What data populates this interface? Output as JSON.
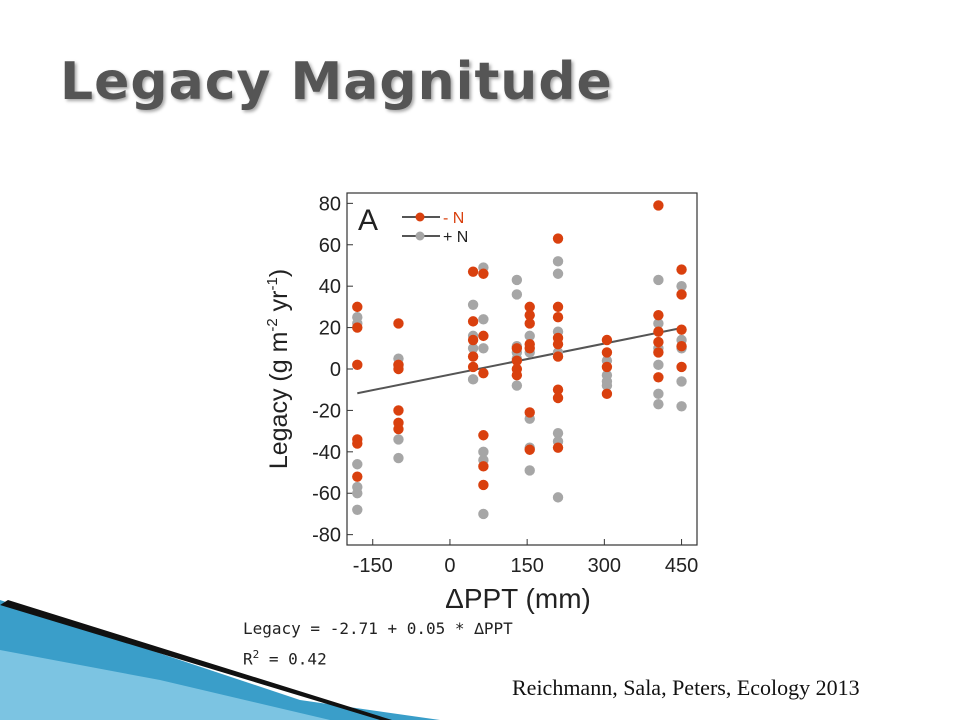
{
  "slide": {
    "title": "Legacy Magnitude",
    "equation_line1": "Legacy = -2.71 + 0.05 * ∆PPT",
    "equation_r_prefix": "R",
    "equation_r_sup": "2",
    "equation_r_value": " = 0.42",
    "citation": "Reichmann, Sala, Peters, Ecology 2013"
  },
  "chart_data": {
    "type": "scatter",
    "panel_label": "A",
    "xlabel": "ΔPPT (mm)",
    "ylabel_main": "Legacy (g m",
    "ylabel_sup1": "-2",
    "ylabel_mid": " yr",
    "ylabel_sup2": "-1",
    "ylabel_end": ")",
    "xlim": [
      -200,
      480
    ],
    "ylim": [
      -85,
      85
    ],
    "xticks": [
      -150,
      0,
      150,
      300,
      450
    ],
    "xtick_labels": [
      "-150",
      "0",
      "150",
      "300",
      "450"
    ],
    "yticks": [
      80,
      60,
      40,
      20,
      0,
      -20,
      -40,
      -60,
      -80
    ],
    "ytick_labels": [
      "80",
      "60",
      "40",
      "20",
      "0",
      "-20",
      "-40",
      "-60",
      "-80"
    ],
    "grid": false,
    "legend_position": "top-left",
    "series": [
      {
        "name": "- N",
        "color": "#d9400e",
        "points": [
          [
            -180,
            30
          ],
          [
            -180,
            20
          ],
          [
            -180,
            2
          ],
          [
            -180,
            -34
          ],
          [
            -180,
            -36
          ],
          [
            -180,
            -52
          ],
          [
            -100,
            22
          ],
          [
            -100,
            2
          ],
          [
            -100,
            0
          ],
          [
            -100,
            -20
          ],
          [
            -100,
            -26
          ],
          [
            -100,
            -29
          ],
          [
            45,
            47
          ],
          [
            45,
            23
          ],
          [
            45,
            14
          ],
          [
            45,
            6
          ],
          [
            45,
            1
          ],
          [
            65,
            46
          ],
          [
            65,
            16
          ],
          [
            65,
            -2
          ],
          [
            65,
            -32
          ],
          [
            65,
            -47
          ],
          [
            65,
            -56
          ],
          [
            130,
            10
          ],
          [
            130,
            4
          ],
          [
            130,
            0
          ],
          [
            130,
            -3
          ],
          [
            155,
            30
          ],
          [
            155,
            26
          ],
          [
            155,
            22
          ],
          [
            155,
            12
          ],
          [
            155,
            10
          ],
          [
            155,
            -21
          ],
          [
            155,
            -39
          ],
          [
            210,
            63
          ],
          [
            210,
            30
          ],
          [
            210,
            25
          ],
          [
            210,
            15
          ],
          [
            210,
            12
          ],
          [
            210,
            6
          ],
          [
            210,
            -10
          ],
          [
            210,
            -14
          ],
          [
            210,
            -38
          ],
          [
            305,
            14
          ],
          [
            305,
            8
          ],
          [
            305,
            1
          ],
          [
            305,
            -12
          ],
          [
            405,
            79
          ],
          [
            405,
            26
          ],
          [
            405,
            18
          ],
          [
            405,
            13
          ],
          [
            405,
            8
          ],
          [
            405,
            -4
          ],
          [
            450,
            48
          ],
          [
            450,
            36
          ],
          [
            450,
            19
          ],
          [
            450,
            11
          ],
          [
            450,
            1
          ]
        ]
      },
      {
        "name": "+ N",
        "color": "#a6a6a6",
        "points": [
          [
            -180,
            25
          ],
          [
            -180,
            22
          ],
          [
            -180,
            -46
          ],
          [
            -180,
            -57
          ],
          [
            -180,
            -60
          ],
          [
            -180,
            -68
          ],
          [
            -100,
            5
          ],
          [
            -100,
            2
          ],
          [
            -100,
            -34
          ],
          [
            -100,
            -43
          ],
          [
            45,
            31
          ],
          [
            45,
            16
          ],
          [
            45,
            10
          ],
          [
            45,
            -5
          ],
          [
            65,
            49
          ],
          [
            65,
            24
          ],
          [
            65,
            10
          ],
          [
            65,
            -40
          ],
          [
            65,
            -44
          ],
          [
            65,
            -70
          ],
          [
            130,
            43
          ],
          [
            130,
            36
          ],
          [
            130,
            11
          ],
          [
            130,
            8
          ],
          [
            130,
            5
          ],
          [
            130,
            -8
          ],
          [
            155,
            16
          ],
          [
            155,
            8
          ],
          [
            155,
            -24
          ],
          [
            155,
            -38
          ],
          [
            155,
            -49
          ],
          [
            210,
            52
          ],
          [
            210,
            46
          ],
          [
            210,
            18
          ],
          [
            210,
            8
          ],
          [
            210,
            -31
          ],
          [
            210,
            -35
          ],
          [
            210,
            -62
          ],
          [
            305,
            4
          ],
          [
            305,
            -3
          ],
          [
            305,
            -6
          ],
          [
            305,
            -8
          ],
          [
            405,
            43
          ],
          [
            405,
            22
          ],
          [
            405,
            10
          ],
          [
            405,
            2
          ],
          [
            405,
            -12
          ],
          [
            405,
            -17
          ],
          [
            450,
            40
          ],
          [
            450,
            14
          ],
          [
            450,
            10
          ],
          [
            450,
            -6
          ],
          [
            450,
            -18
          ]
        ]
      }
    ],
    "fit_line": {
      "intercept": -2.71,
      "slope": 0.05,
      "x_range": [
        -180,
        450
      ],
      "color": "#555555"
    }
  }
}
